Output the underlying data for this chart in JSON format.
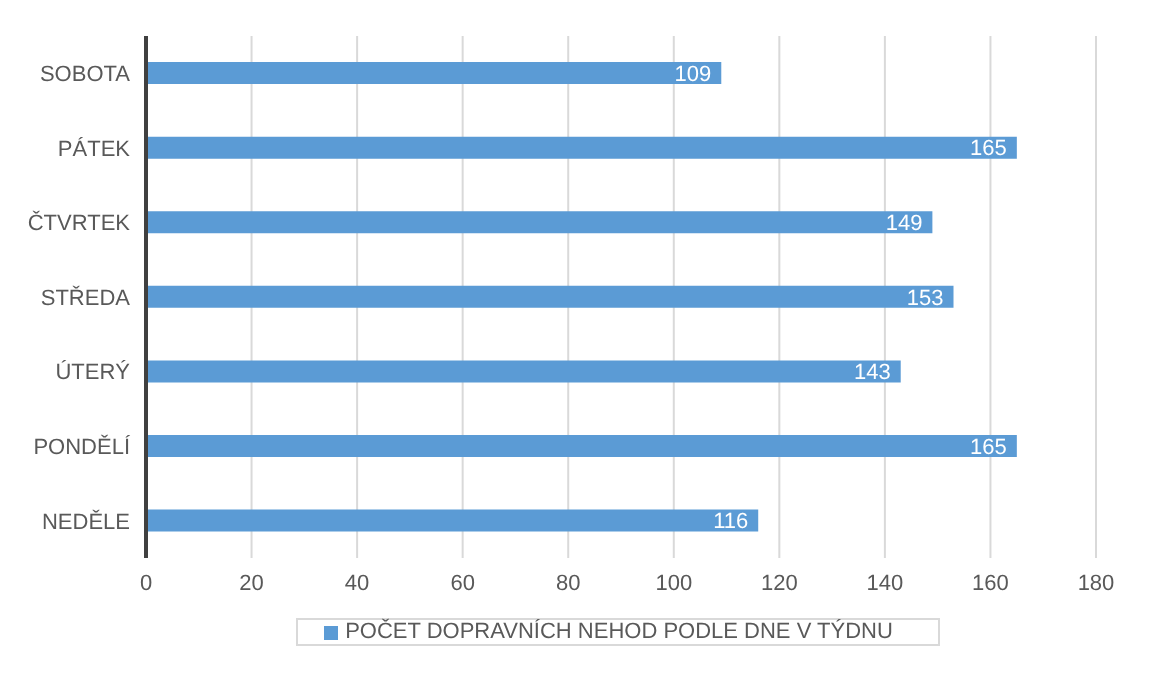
{
  "chart_data": {
    "type": "bar",
    "orientation": "horizontal",
    "categories": [
      "SOBOTA",
      "PÁTEK",
      "ČTVRTEK",
      "STŘEDA",
      "ÚTERÝ",
      "PONDĚLÍ",
      "NEDĚLE"
    ],
    "series": [
      {
        "name": "POČET DOPRAVNÍCH NEHOD PODLE DNE V TÝDNU",
        "color": "#5b9bd5",
        "values": [
          109,
          165,
          149,
          153,
          143,
          165,
          116
        ]
      }
    ],
    "xlim": [
      0,
      180
    ],
    "xticks": [
      0,
      20,
      40,
      60,
      80,
      100,
      120,
      140,
      160,
      180
    ],
    "grid": "x",
    "legend": "bottom",
    "data_labels": true
  }
}
